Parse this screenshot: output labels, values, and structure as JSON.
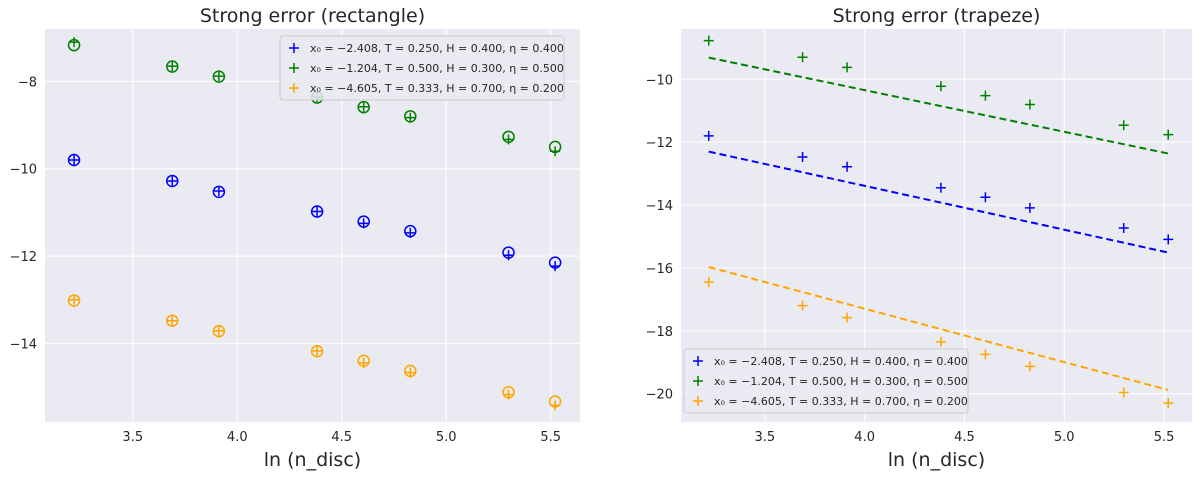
{
  "chart_data": [
    {
      "type": "scatter",
      "title": "Strong error (rectangle)",
      "xlabel": "ln (n_disc)",
      "ylabel": "",
      "xlim": [
        3.08,
        5.64
      ],
      "ylim": [
        -15.8,
        -6.8
      ],
      "xticks": [
        "3.5",
        "4.0",
        "4.5",
        "5.0",
        "5.5"
      ],
      "yticks": [
        "−8",
        "−10",
        "−12",
        "−14"
      ],
      "grid": true,
      "legend_position": "top-right",
      "series": [
        {
          "name": "x₀ = −2.408, T = 0.250, H = 0.400, η = 0.400",
          "color": "#0000ff",
          "x": [
            3.219,
            3.689,
            3.912,
            4.382,
            4.605,
            4.828,
            5.298,
            5.521
          ],
          "plus": [
            -9.8,
            -10.28,
            -10.51,
            -10.98,
            -11.25,
            -11.47,
            -11.98,
            -12.23
          ],
          "circle": [
            -9.8,
            -10.28,
            -10.53,
            -10.98,
            -11.21,
            -11.43,
            -11.92,
            -12.15
          ]
        },
        {
          "name": "x₀ = −1.204, T = 0.500, H = 0.300, η = 0.500",
          "color": "#008000",
          "x": [
            3.219,
            3.689,
            3.912,
            4.382,
            4.605,
            4.828,
            5.298,
            5.521
          ],
          "plus": [
            -7.1,
            -7.65,
            -7.88,
            -8.36,
            -8.58,
            -8.83,
            -9.33,
            -9.6
          ],
          "circle": [
            -7.17,
            -7.66,
            -7.89,
            -8.37,
            -8.59,
            -8.8,
            -9.27,
            -9.5
          ]
        },
        {
          "name": "x₀ = −4.605, T = 0.333, H = 0.700, η = 0.200",
          "color": "#ffa500",
          "x": [
            3.219,
            3.689,
            3.912,
            4.382,
            4.605,
            4.828,
            5.298,
            5.521
          ],
          "plus": [
            -13.0,
            -13.48,
            -13.71,
            -14.17,
            -14.45,
            -14.67,
            -15.17,
            -15.42
          ],
          "circle": [
            -13.02,
            -13.48,
            -13.72,
            -14.18,
            -14.4,
            -14.63,
            -15.12,
            -15.33
          ]
        }
      ]
    },
    {
      "type": "scatter",
      "title": "Strong error (trapeze)",
      "xlabel": "ln (n_disc)",
      "ylabel": "",
      "xlim": [
        3.08,
        5.64
      ],
      "ylim": [
        -20.9,
        -8.4
      ],
      "xticks": [
        "3.5",
        "4.0",
        "4.5",
        "5.0",
        "5.5"
      ],
      "yticks": [
        "−10",
        "−12",
        "−14",
        "−16",
        "−18",
        "−20"
      ],
      "grid": true,
      "legend_position": "bottom-left",
      "series": [
        {
          "name": "x₀ = −2.408, T = 0.250, H = 0.400, η = 0.400",
          "color": "#0000ff",
          "x": [
            3.219,
            3.689,
            3.912,
            4.382,
            4.605,
            4.828,
            5.298,
            5.521
          ],
          "plus": [
            -11.8,
            -12.47,
            -12.78,
            -13.45,
            -13.75,
            -14.09,
            -14.73,
            -15.09
          ],
          "fit": [
            [
              3.219,
              -12.3
            ],
            [
              5.521,
              -15.51
            ]
          ]
        },
        {
          "name": "x₀ = −1.204, T = 0.500, H = 0.300, η = 0.500",
          "color": "#008000",
          "x": [
            3.219,
            3.689,
            3.912,
            4.382,
            4.605,
            4.828,
            5.298,
            5.521
          ],
          "plus": [
            -8.77,
            -9.3,
            -9.62,
            -10.22,
            -10.52,
            -10.8,
            -11.46,
            -11.76
          ],
          "fit": [
            [
              3.219,
              -9.31
            ],
            [
              5.521,
              -12.36
            ]
          ]
        },
        {
          "name": "x₀ = −4.605, T = 0.333, H = 0.700, η = 0.200",
          "color": "#ffa500",
          "x": [
            3.219,
            3.689,
            3.912,
            4.382,
            4.605,
            4.828,
            5.298,
            5.521
          ],
          "plus": [
            -16.45,
            -17.2,
            -17.58,
            -18.35,
            -18.75,
            -19.13,
            -19.96,
            -20.3
          ],
          "fit": [
            [
              3.219,
              -15.97
            ],
            [
              5.521,
              -19.88
            ]
          ]
        }
      ]
    }
  ]
}
